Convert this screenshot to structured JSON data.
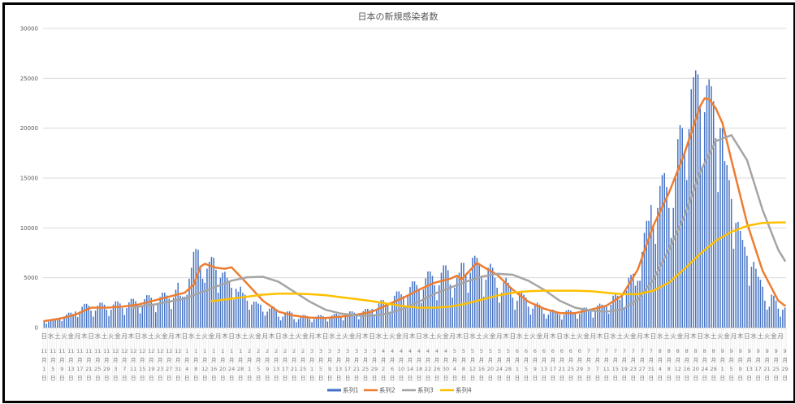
{
  "chart_data": {
    "type": "bar",
    "title": "日本の新規感染者数",
    "xlabel": "",
    "ylabel": "",
    "ylim": [
      0,
      30000
    ],
    "yticks": [
      0,
      5000,
      10000,
      15000,
      20000,
      25000,
      30000
    ],
    "grid": true,
    "legend_position": "bottom",
    "x_first": "11/1",
    "x_last": "9/29",
    "weekday_labels": "日水土火金月木日水土火金月木日水土火金月木日水土火金月木日水土火金月木日水土火金月木日水土火金月木日水土火金月木日水土火金月木日水土火金月木日水土火金月木日水土火金月木日水土火金月木日水土火金月木日水土火金月木日水土火金月",
    "date_labels": [
      "11/1",
      "11/5",
      "11/9",
      "11/13",
      "11/17",
      "11/21",
      "11/25",
      "11/29",
      "12/3",
      "12/7",
      "12/11",
      "12/15",
      "12/19",
      "12/23",
      "12/27",
      "12/31",
      "1/4",
      "1/8",
      "1/12",
      "1/16",
      "1/20",
      "1/24",
      "1/28",
      "2/1",
      "2/5",
      "2/9",
      "2/13",
      "2/17",
      "2/21",
      "2/25",
      "3/1",
      "3/5",
      "3/9",
      "3/13",
      "3/17",
      "3/21",
      "3/25",
      "3/29",
      "4/2",
      "4/6",
      "4/10",
      "4/14",
      "4/18",
      "4/22",
      "4/26",
      "4/30",
      "5/4",
      "5/8",
      "5/12",
      "5/16",
      "5/20",
      "5/24",
      "5/28",
      "6/1",
      "6/5",
      "6/9",
      "6/13",
      "6/17",
      "6/21",
      "6/25",
      "6/29",
      "7/3",
      "7/7",
      "7/11",
      "7/15",
      "7/19",
      "7/23",
      "7/27",
      "7/31",
      "8/4",
      "8/8",
      "8/12",
      "8/16",
      "8/20",
      "8/24",
      "8/28",
      "9/1",
      "9/5",
      "9/9",
      "9/13",
      "9/17",
      "9/21",
      "9/25",
      "9/29"
    ],
    "series": [
      {
        "name": "系列1",
        "kind": "bar",
        "color": "#4472C4",
        "values": [
          600,
          390,
          600,
          770,
          880,
          880,
          800,
          1020,
          660,
          1020,
          1320,
          1500,
          1500,
          1380,
          1620,
          1050,
          1620,
          2090,
          2380,
          2380,
          2190,
          1700,
          1100,
          1700,
          2200,
          2500,
          2500,
          2300,
          1790,
          1160,
          1790,
          2310,
          2630,
          2630,
          2420,
          1960,
          1270,
          1960,
          2530,
          2880,
          2880,
          2650,
          2210,
          1430,
          2210,
          2860,
          3250,
          3250,
          2990,
          2380,
          1540,
          2380,
          3080,
          3500,
          3500,
          3220,
          2890,
          1870,
          3000,
          3800,
          4500,
          3200,
          3100,
          3100,
          3300,
          4900,
          6000,
          7600,
          7900,
          7800,
          6100,
          4900,
          4500,
          5900,
          6600,
          7100,
          7000,
          5800,
          3500,
          5000,
          5500,
          5600,
          5000,
          4700,
          4000,
          2800,
          3900,
          3600,
          4100,
          3500,
          3300,
          2700,
          1800,
          2300,
          2600,
          2600,
          2400,
          2300,
          1600,
          1200,
          1600,
          1900,
          2200,
          2100,
          1700,
          1100,
          720,
          1100,
          1430,
          1630,
          1630,
          1500,
          850,
          550,
          850,
          1100,
          1250,
          1250,
          1150,
          850,
          550,
          850,
          1100,
          1250,
          1250,
          1150,
          940,
          610,
          940,
          1210,
          1380,
          1380,
          1270,
          1100,
          720,
          1100,
          1430,
          1630,
          1630,
          1500,
          1280,
          830,
          1280,
          1650,
          1880,
          1880,
          1730,
          1870,
          1210,
          1870,
          2420,
          2750,
          2750,
          2530,
          2470,
          1600,
          2470,
          3190,
          3630,
          3630,
          3340,
          3150,
          2040,
          3150,
          4070,
          4630,
          4630,
          4260,
          3830,
          2480,
          3830,
          4950,
          5630,
          5630,
          5180,
          4250,
          2750,
          4250,
          5500,
          6250,
          6250,
          5750,
          4300,
          3000,
          4000,
          5000,
          5500,
          6500,
          6500,
          5400,
          3500,
          5500,
          7000,
          7200,
          7000,
          6400,
          5000,
          3100,
          4800,
          6000,
          6400,
          6000,
          5000,
          4000,
          2500,
          3500,
          4600,
          5000,
          4500,
          4000,
          3000,
          1800,
          2700,
          3600,
          3700,
          3300,
          3000,
          2100,
          1300,
          1900,
          2400,
          2500,
          2300,
          2100,
          1400,
          900,
          1300,
          1800,
          1800,
          1700,
          1500,
          1300,
          800,
          1300,
          1700,
          1800,
          1700,
          1500,
          1400,
          900,
          1400,
          1800,
          2000,
          2000,
          1800,
          1600,
          1000,
          1600,
          2200,
          2400,
          2300,
          2100,
          2100,
          1400,
          2300,
          3200,
          3400,
          3200,
          2800,
          3100,
          1900,
          3700,
          5000,
          5300,
          5400,
          4200,
          4700,
          4700,
          7600,
          9500,
          10700,
          10700,
          12300,
          10200,
          8400,
          12000,
          14200,
          15300,
          15500,
          14100,
          12000,
          9000,
          12000,
          15000,
          18900,
          20300,
          20000,
          17500,
          14800,
          19900,
          23900,
          25100,
          25800,
          25400,
          22000,
          16000,
          21600,
          24300,
          24900,
          24200,
          22700,
          19000,
          13600,
          20000,
          20000,
          16700,
          16300,
          14800,
          12900,
          7900,
          10500,
          10600,
          9700,
          8800,
          8100,
          7200,
          4200,
          6100,
          6600,
          5900,
          5100,
          4800,
          4100,
          2700,
          1800,
          2100,
          3300,
          3200,
          2700,
          1900,
          1100,
          1800,
          2000
        ]
      },
      {
        "name": "系列2",
        "kind": "line",
        "color": "#ED7D31",
        "points": [
          [
            "11/1",
            650
          ],
          [
            "11/8",
            900
          ],
          [
            "11/15",
            1300
          ],
          [
            "11/22",
            2000
          ],
          [
            "11/29",
            2000
          ],
          [
            "12/6",
            2100
          ],
          [
            "12/13",
            2300
          ],
          [
            "12/20",
            2700
          ],
          [
            "12/27",
            3100
          ],
          [
            "1/3",
            3500
          ],
          [
            "1/7",
            4300
          ],
          [
            "1/10",
            6100
          ],
          [
            "1/12",
            6400
          ],
          [
            "1/17",
            6000
          ],
          [
            "1/21",
            5900
          ],
          [
            "1/24",
            6050
          ],
          [
            "1/31",
            4400
          ],
          [
            "2/7",
            2700
          ],
          [
            "2/14",
            1600
          ],
          [
            "2/21",
            1200
          ],
          [
            "2/28",
            1000
          ],
          [
            "3/7",
            950
          ],
          [
            "3/14",
            1100
          ],
          [
            "3/21",
            1300
          ],
          [
            "3/28",
            1600
          ],
          [
            "4/4",
            2300
          ],
          [
            "4/11",
            3000
          ],
          [
            "4/18",
            3800
          ],
          [
            "4/25",
            4500
          ],
          [
            "5/2",
            4900
          ],
          [
            "5/5",
            5200
          ],
          [
            "5/7",
            4800
          ],
          [
            "5/9",
            5300
          ],
          [
            "5/14",
            6500
          ],
          [
            "5/16",
            6200
          ],
          [
            "5/23",
            5300
          ],
          [
            "5/30",
            3800
          ],
          [
            "6/6",
            2600
          ],
          [
            "6/13",
            1900
          ],
          [
            "6/20",
            1450
          ],
          [
            "6/27",
            1450
          ],
          [
            "7/4",
            1800
          ],
          [
            "7/11",
            2200
          ],
          [
            "7/18",
            3200
          ],
          [
            "7/25",
            5800
          ],
          [
            "8/1",
            10200
          ],
          [
            "8/8",
            13500
          ],
          [
            "8/15",
            17500
          ],
          [
            "8/22",
            22200
          ],
          [
            "8/24",
            23000
          ],
          [
            "8/26",
            22900
          ],
          [
            "8/29",
            22000
          ],
          [
            "9/1",
            20500
          ],
          [
            "9/5",
            16800
          ],
          [
            "9/12",
            10500
          ],
          [
            "9/19",
            5700
          ],
          [
            "9/26",
            2700
          ],
          [
            "9/29",
            2200
          ]
        ]
      },
      {
        "name": "系列3",
        "kind": "line",
        "color": "#A5A5A5",
        "points": [
          [
            "12/11",
            2000
          ],
          [
            "12/13",
            2100
          ],
          [
            "12/20",
            2300
          ],
          [
            "12/27",
            2600
          ],
          [
            "1/3",
            2900
          ],
          [
            "1/10",
            3500
          ],
          [
            "1/17",
            4100
          ],
          [
            "1/24",
            4700
          ],
          [
            "1/31",
            5050
          ],
          [
            "2/7",
            5100
          ],
          [
            "2/14",
            4600
          ],
          [
            "2/21",
            3600
          ],
          [
            "2/28",
            2600
          ],
          [
            "3/7",
            1800
          ],
          [
            "3/14",
            1400
          ],
          [
            "3/21",
            1200
          ],
          [
            "3/28",
            1200
          ],
          [
            "4/4",
            1400
          ],
          [
            "4/11",
            1900
          ],
          [
            "4/18",
            2600
          ],
          [
            "4/25",
            3400
          ],
          [
            "5/2",
            4000
          ],
          [
            "5/9",
            4600
          ],
          [
            "5/16",
            5100
          ],
          [
            "5/23",
            5400
          ],
          [
            "5/30",
            5300
          ],
          [
            "6/6",
            4700
          ],
          [
            "6/13",
            3800
          ],
          [
            "6/20",
            2700
          ],
          [
            "6/27",
            2000
          ],
          [
            "7/4",
            1700
          ],
          [
            "7/11",
            1600
          ],
          [
            "7/18",
            1800
          ],
          [
            "7/25",
            2800
          ],
          [
            "8/1",
            4800
          ],
          [
            "8/8",
            7800
          ],
          [
            "8/15",
            11200
          ],
          [
            "8/22",
            15600
          ],
          [
            "8/29",
            18700
          ],
          [
            "9/5",
            19300
          ],
          [
            "9/12",
            16800
          ],
          [
            "9/19",
            11800
          ],
          [
            "9/26",
            7800
          ],
          [
            "9/29",
            6700
          ]
        ]
      },
      {
        "name": "系列4",
        "kind": "line",
        "color": "#FFC000",
        "points": [
          [
            "1/15",
            2650
          ],
          [
            "1/17",
            2700
          ],
          [
            "1/24",
            2900
          ],
          [
            "1/31",
            3100
          ],
          [
            "2/7",
            3300
          ],
          [
            "2/14",
            3400
          ],
          [
            "2/21",
            3400
          ],
          [
            "2/28",
            3350
          ],
          [
            "3/7",
            3250
          ],
          [
            "3/14",
            3050
          ],
          [
            "3/21",
            2850
          ],
          [
            "3/28",
            2650
          ],
          [
            "4/4",
            2400
          ],
          [
            "4/11",
            2150
          ],
          [
            "4/18",
            2000
          ],
          [
            "4/25",
            2000
          ],
          [
            "5/2",
            2100
          ],
          [
            "5/9",
            2400
          ],
          [
            "5/16",
            2800
          ],
          [
            "5/23",
            3200
          ],
          [
            "5/30",
            3500
          ],
          [
            "6/6",
            3650
          ],
          [
            "6/13",
            3700
          ],
          [
            "6/20",
            3700
          ],
          [
            "6/27",
            3700
          ],
          [
            "7/4",
            3650
          ],
          [
            "7/11",
            3500
          ],
          [
            "7/18",
            3350
          ],
          [
            "7/25",
            3350
          ],
          [
            "8/1",
            3700
          ],
          [
            "8/8",
            4500
          ],
          [
            "8/15",
            5900
          ],
          [
            "8/22",
            7400
          ],
          [
            "8/29",
            8700
          ],
          [
            "9/5",
            9600
          ],
          [
            "9/12",
            10200
          ],
          [
            "9/19",
            10500
          ],
          [
            "9/26",
            10550
          ],
          [
            "9/29",
            10550
          ]
        ]
      }
    ]
  }
}
